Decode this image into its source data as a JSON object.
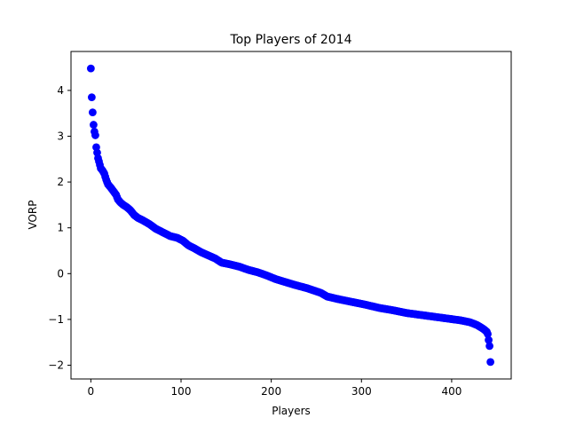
{
  "chart_data": {
    "type": "scatter",
    "title": "Top Players of 2014",
    "xlabel": "Players",
    "ylabel": "VORP",
    "xlim": [
      -22,
      466
    ],
    "ylim": [
      -2.3,
      4.85
    ],
    "xticks": [
      0,
      100,
      200,
      300,
      400
    ],
    "yticks": [
      -2,
      -1,
      0,
      1,
      2,
      3,
      4
    ],
    "grid": false,
    "legend": "none",
    "marker_color": "#0000ff",
    "series": [
      {
        "curve": [
          [
            0,
            4.48
          ],
          [
            1,
            3.85
          ],
          [
            2,
            3.52
          ],
          [
            3,
            3.25
          ],
          [
            4,
            3.1
          ],
          [
            5,
            3.02
          ],
          [
            6,
            2.76
          ],
          [
            8,
            2.52
          ],
          [
            9,
            2.45
          ],
          [
            11,
            2.3
          ],
          [
            13,
            2.25
          ],
          [
            15,
            2.18
          ],
          [
            17,
            2.05
          ],
          [
            19,
            1.95
          ],
          [
            22,
            1.88
          ],
          [
            25,
            1.8
          ],
          [
            28,
            1.72
          ],
          [
            30,
            1.62
          ],
          [
            33,
            1.55
          ],
          [
            36,
            1.5
          ],
          [
            40,
            1.45
          ],
          [
            44,
            1.38
          ],
          [
            48,
            1.28
          ],
          [
            52,
            1.22
          ],
          [
            58,
            1.16
          ],
          [
            65,
            1.08
          ],
          [
            72,
            0.98
          ],
          [
            80,
            0.9
          ],
          [
            88,
            0.82
          ],
          [
            96,
            0.78
          ],
          [
            102,
            0.72
          ],
          [
            108,
            0.62
          ],
          [
            115,
            0.55
          ],
          [
            122,
            0.47
          ],
          [
            130,
            0.4
          ],
          [
            138,
            0.33
          ],
          [
            145,
            0.24
          ],
          [
            155,
            0.2
          ],
          [
            165,
            0.15
          ],
          [
            175,
            0.08
          ],
          [
            185,
            0.03
          ],
          [
            195,
            -0.04
          ],
          [
            205,
            -0.12
          ],
          [
            215,
            -0.18
          ],
          [
            225,
            -0.24
          ],
          [
            240,
            -0.32
          ],
          [
            255,
            -0.42
          ],
          [
            262,
            -0.5
          ],
          [
            275,
            -0.56
          ],
          [
            290,
            -0.62
          ],
          [
            305,
            -0.68
          ],
          [
            320,
            -0.75
          ],
          [
            335,
            -0.8
          ],
          [
            350,
            -0.86
          ],
          [
            365,
            -0.9
          ],
          [
            380,
            -0.94
          ],
          [
            395,
            -0.98
          ],
          [
            410,
            -1.02
          ],
          [
            420,
            -1.06
          ],
          [
            428,
            -1.12
          ],
          [
            433,
            -1.18
          ],
          [
            436,
            -1.22
          ],
          [
            439,
            -1.27
          ],
          [
            440,
            -1.32
          ],
          [
            441,
            -1.45
          ],
          [
            442,
            -1.58
          ],
          [
            443,
            -1.93
          ]
        ]
      }
    ]
  }
}
